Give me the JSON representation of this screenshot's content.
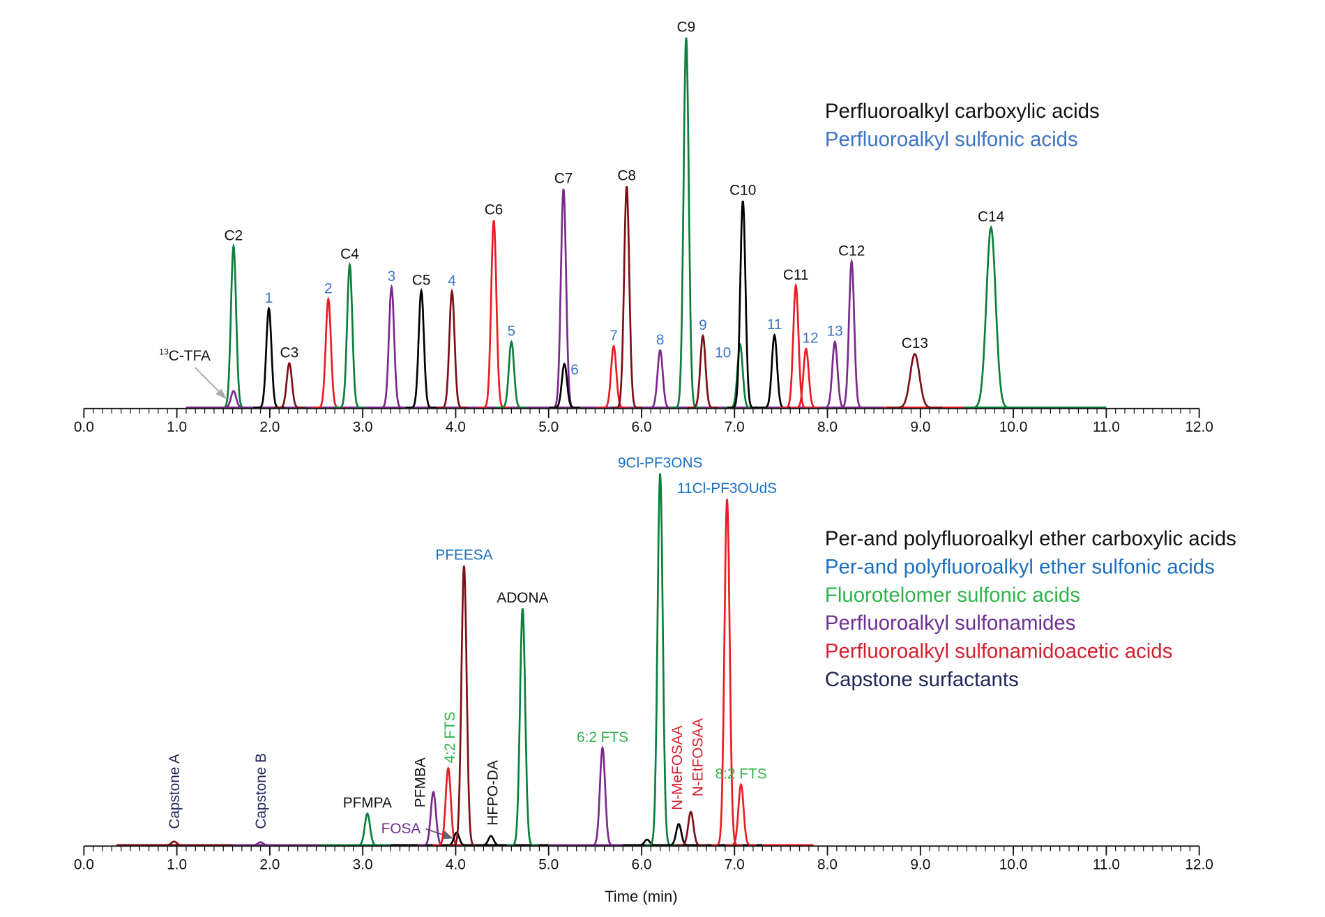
{
  "colors": {
    "trace_green": "#0b7f3b",
    "trace_red": "#ec1c24",
    "trace_darkred": "#7d1016",
    "trace_purple": "#7b2a8c",
    "trace_black": "#000000",
    "label_black": "#111111",
    "label_blue_top": "#3d74c4",
    "label_blue": "#1a6fc0",
    "label_green": "#2fb34a",
    "label_purple": "#6e2f92",
    "label_red": "#d3202e",
    "label_navy": "#1d2657"
  },
  "chart_data": [
    {
      "type": "line",
      "xlabel": "",
      "ylabel": "",
      "xlim": [
        0,
        12
      ],
      "x_ticks": [
        "0.0",
        "1.0",
        "2.0",
        "3.0",
        "4.0",
        "5.0",
        "6.0",
        "7.0",
        "8.0",
        "9.0",
        "10.0",
        "11.0",
        "12.0"
      ],
      "legend": [
        {
          "text": "Perfluoroalkyl carboxylic acids",
          "color": "label_black"
        },
        {
          "text": "Perfluoroalkyl sulfonic acids",
          "color": "label_blue_top"
        }
      ],
      "annotation": {
        "text_sup": "13",
        "text": "C-TFA"
      },
      "peaks": [
        {
          "label": "C2",
          "time": 1.61,
          "intensity": 43.6,
          "trace": "trace_green",
          "label_color": "label_black"
        },
        {
          "label": "1",
          "time": 1.99,
          "intensity": 26.8,
          "trace": "trace_black",
          "label_color": "label_blue_top"
        },
        {
          "label": "C3",
          "time": 2.21,
          "intensity": 12.0,
          "trace": "trace_darkred",
          "label_color": "label_black"
        },
        {
          "label": "2",
          "time": 2.63,
          "intensity": 29.3,
          "trace": "trace_red",
          "label_color": "label_blue_top"
        },
        {
          "label": "C4",
          "time": 2.86,
          "intensity": 38.6,
          "trace": "trace_green",
          "label_color": "label_black"
        },
        {
          "label": "3",
          "time": 3.31,
          "intensity": 32.6,
          "trace": "trace_purple",
          "label_color": "label_blue_top"
        },
        {
          "label": "C5",
          "time": 3.63,
          "intensity": 31.6,
          "trace": "trace_black",
          "label_color": "label_black"
        },
        {
          "label": "4",
          "time": 3.96,
          "intensity": 31.4,
          "trace": "trace_darkred",
          "label_color": "label_blue_top"
        },
        {
          "label": "C6",
          "time": 4.41,
          "intensity": 50.6,
          "trace": "trace_red",
          "label_color": "label_black"
        },
        {
          "label": "5",
          "time": 4.6,
          "intensity": 17.8,
          "trace": "trace_green",
          "label_color": "label_blue_top"
        },
        {
          "label": "C7",
          "time": 5.16,
          "intensity": 59.1,
          "trace": "trace_purple",
          "label_color": "label_black"
        },
        {
          "label": "6",
          "time": 5.17,
          "intensity": 11.8,
          "trace": "trace_black",
          "label_color": "label_blue_top"
        },
        {
          "label": "7",
          "time": 5.7,
          "intensity": 16.6,
          "trace": "trace_red",
          "label_color": "label_blue_top"
        },
        {
          "label": "C8",
          "time": 5.84,
          "intensity": 59.8,
          "trace": "trace_darkred",
          "label_color": "label_black"
        },
        {
          "label": "8",
          "time": 6.2,
          "intensity": 15.5,
          "trace": "trace_purple",
          "label_color": "label_blue_top"
        },
        {
          "label": "C9",
          "time": 6.48,
          "intensity": 100,
          "trace": "trace_green",
          "label_color": "label_black"
        },
        {
          "label": "9",
          "time": 6.66,
          "intensity": 19.4,
          "trace": "trace_darkred",
          "label_color": "label_blue_top"
        },
        {
          "label": "10",
          "time": 7.06,
          "intensity": 17.1,
          "trace": "trace_green",
          "label_color": "label_blue_top"
        },
        {
          "label": "C10",
          "time": 7.09,
          "intensity": 55.9,
          "trace": "trace_black",
          "label_color": "label_black"
        },
        {
          "label": "11",
          "time": 7.43,
          "intensity": 19.6,
          "trace": "trace_black",
          "label_color": "label_blue_top"
        },
        {
          "label": "C11",
          "time": 7.66,
          "intensity": 33.0,
          "trace": "trace_red",
          "label_color": "label_black"
        },
        {
          "label": "12",
          "time": 7.77,
          "intensity": 15.9,
          "trace": "trace_red",
          "label_color": "label_blue_top"
        },
        {
          "label": "13",
          "time": 8.08,
          "intensity": 17.8,
          "trace": "trace_purple",
          "label_color": "label_blue_top"
        },
        {
          "label": "C12",
          "time": 8.26,
          "intensity": 39.5,
          "trace": "trace_purple",
          "label_color": "label_black"
        },
        {
          "label": "C13",
          "time": 8.94,
          "intensity": 14.5,
          "trace": "trace_darkred",
          "label_color": "label_black"
        },
        {
          "label": "C14",
          "time": 9.76,
          "intensity": 48.7,
          "trace": "trace_green",
          "label_color": "label_black"
        },
        {
          "label": "",
          "time": 1.61,
          "intensity": 4.5,
          "trace": "trace_purple",
          "label_color": "label_black"
        }
      ]
    },
    {
      "type": "line",
      "xlabel": "Time (min)",
      "ylabel": "",
      "xlim": [
        0,
        12
      ],
      "x_ticks": [
        "0.0",
        "1.0",
        "2.0",
        "3.0",
        "4.0",
        "5.0",
        "6.0",
        "7.0",
        "8.0",
        "9.0",
        "10.0",
        "11.0",
        "12.0"
      ],
      "legend": [
        {
          "text": "Per-and polyfluoroalkyl ether carboxylic acids",
          "color": "label_black"
        },
        {
          "text": "Per-and polyfluoroalkyl ether sulfonic acids",
          "color": "label_blue"
        },
        {
          "text": "Fluorotelomer sulfonic acids",
          "color": "label_green"
        },
        {
          "text": "Perfluoroalkyl sulfonamides",
          "color": "label_purple"
        },
        {
          "text": "Perfluoroalkyl sulfonamidoacetic acids",
          "color": "label_red"
        },
        {
          "text": "Capstone surfactants",
          "color": "label_navy"
        }
      ],
      "peaks": [
        {
          "label": "Capstone A",
          "time": 0.97,
          "intensity": 1.0,
          "trace": "trace_darkred",
          "label_color": "label_navy",
          "vertical": true
        },
        {
          "label": "Capstone B",
          "time": 1.9,
          "intensity": 0.8,
          "trace": "trace_purple",
          "label_color": "label_navy",
          "vertical": true
        },
        {
          "label": "PFMPA",
          "time": 3.05,
          "intensity": 8.5,
          "trace": "trace_green",
          "label_color": "label_black"
        },
        {
          "label": "PFMBA",
          "time": 3.76,
          "intensity": 14.3,
          "trace": "trace_purple",
          "label_color": "label_black",
          "vertical": true
        },
        {
          "label": "4:2 FTS",
          "time": 3.92,
          "intensity": 20.7,
          "trace": "trace_red",
          "label_color": "label_green",
          "vertical": true
        },
        {
          "label": "FOSA",
          "time": 4.01,
          "intensity": 3.4,
          "trace": "trace_black",
          "label_color": "label_purple"
        },
        {
          "label": "PFEESA",
          "time": 4.09,
          "intensity": 75.2,
          "trace": "trace_darkred",
          "label_color": "label_blue"
        },
        {
          "label": "HFPO-DA",
          "time": 4.38,
          "intensity": 2.5,
          "trace": "trace_black",
          "label_color": "label_black",
          "vertical": true
        },
        {
          "label": "ADONA",
          "time": 4.72,
          "intensity": 63.7,
          "trace": "trace_green",
          "label_color": "label_black"
        },
        {
          "label": "6:2 FTS",
          "time": 5.58,
          "intensity": 26.2,
          "trace": "trace_purple",
          "label_color": "label_green"
        },
        {
          "label": "",
          "time": 6.06,
          "intensity": 1.5,
          "trace": "trace_black",
          "label_color": "label_black"
        },
        {
          "label": "9Cl-PF3ONS",
          "time": 6.2,
          "intensity": 100,
          "trace": "trace_green",
          "label_color": "label_blue"
        },
        {
          "label": "N-MeFOSAA",
          "time": 6.4,
          "intensity": 5.7,
          "trace": "trace_black",
          "label_color": "label_red",
          "vertical": true
        },
        {
          "label": "N-EtFOSAA",
          "time": 6.53,
          "intensity": 9.0,
          "trace": "trace_darkred",
          "label_color": "label_red",
          "vertical": true
        },
        {
          "label": "11Cl-PF3OUdS",
          "time": 6.92,
          "intensity": 93.1,
          "trace": "trace_red",
          "label_color": "label_blue"
        },
        {
          "label": "8:2 FTS",
          "time": 7.07,
          "intensity": 16.3,
          "trace": "trace_red",
          "label_color": "label_green"
        }
      ]
    }
  ]
}
